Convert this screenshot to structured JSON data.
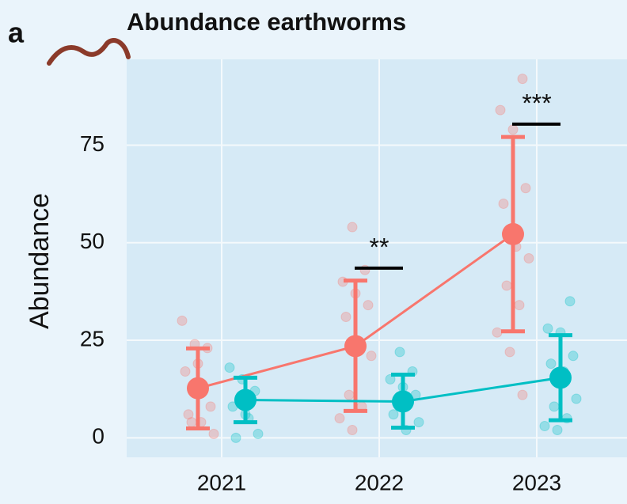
{
  "chart_data": {
    "type": "line",
    "panel_label": "a",
    "title": "Abundance earthworms",
    "y_label": "Abundance",
    "categories": [
      "2021",
      "2022",
      "2023"
    ],
    "series": [
      {
        "color": "#f8766d",
        "values": [
          12.7,
          23.5,
          52.2
        ],
        "upper": [
          22.9,
          40.3,
          77.1
        ],
        "lower": [
          2.4,
          6.9,
          27.3
        ],
        "points": [
          [
            30,
            24,
            23,
            17,
            19,
            8,
            6,
            4,
            1,
            4
          ],
          [
            54,
            43,
            40,
            37,
            34,
            31,
            24,
            21,
            11,
            8,
            5,
            2
          ],
          [
            92,
            84,
            79,
            64,
            60,
            49,
            46,
            39,
            34,
            27,
            22,
            11
          ]
        ]
      },
      {
        "color": "#00bfc4",
        "values": [
          9.7,
          9.3,
          15.4
        ],
        "upper": [
          15.4,
          16.2,
          26.3
        ],
        "lower": [
          4.0,
          2.6,
          4.5
        ],
        "points": [
          [
            18,
            15,
            12,
            8,
            6,
            1,
            0,
            5
          ],
          [
            22,
            17,
            15,
            13,
            11,
            6,
            2,
            4
          ],
          [
            35,
            28,
            27,
            21,
            19,
            17,
            10,
            8,
            5,
            3,
            2
          ]
        ]
      }
    ],
    "annotations": [
      {
        "text": "**",
        "category": "2022",
        "y": 43.5
      },
      {
        "text": "***",
        "category": "2023",
        "y": 80.4
      }
    ],
    "ylim": [
      -5,
      97
    ],
    "yticks": [
      0,
      25,
      50,
      75
    ],
    "grid": true
  }
}
